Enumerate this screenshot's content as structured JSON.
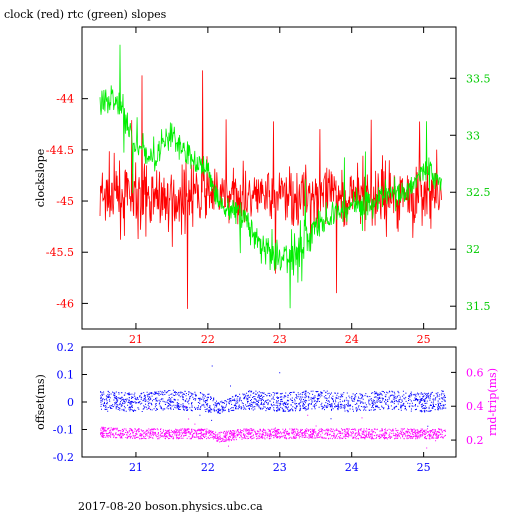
{
  "header": {
    "title": "clock (red) rtc (green) slopes"
  },
  "footer": {
    "text": "2017-08-20  boson.physics.ubc.ca"
  },
  "colors": {
    "clock": "#ff0000",
    "rtc": "#00ee00",
    "offset": "#0000ff",
    "rndtrip": "#ff00ff",
    "frame": "#000000"
  },
  "chart_data": [
    {
      "type": "line",
      "title": "clock (red) rtc (green) slopes",
      "ylabel": "clockslope",
      "x_ticks": [
        "21",
        "22",
        "23",
        "24",
        "25"
      ],
      "xlim": [
        20.25,
        25.45
      ],
      "ylim_left": [
        -46.25,
        -43.3
      ],
      "ylim_right": [
        31.3,
        33.95
      ],
      "y_ticks_left": [
        "-44",
        "-44.5",
        "-45",
        "-45.5",
        "-46"
      ],
      "y_ticks_right": [
        "33.5",
        "33",
        "32.5",
        "32",
        "31.5"
      ],
      "grid": false,
      "series": [
        {
          "name": "clock",
          "axis": "left",
          "x": [
            20.5,
            20.75,
            21.0,
            21.25,
            21.5,
            21.75,
            22.0,
            22.25,
            22.5,
            22.75,
            23.0,
            23.25,
            23.5,
            23.75,
            24.0,
            24.25,
            24.5,
            24.75,
            25.0,
            25.25
          ],
          "mean": [
            -44.97,
            -44.95,
            -44.96,
            -44.95,
            -44.96,
            -44.95,
            -44.96,
            -44.95,
            -44.96,
            -44.95,
            -44.94,
            -44.95,
            -44.95,
            -44.94,
            -44.95,
            -44.94,
            -44.95,
            -44.94,
            -44.95,
            -44.95
          ],
          "spread": [
            0.35,
            0.3,
            0.3,
            0.3,
            0.3,
            0.3,
            0.35,
            0.2,
            0.25,
            0.25,
            0.3,
            0.3,
            0.3,
            0.25,
            0.3,
            0.3,
            0.3,
            0.3,
            0.3,
            0.3
          ]
        },
        {
          "name": "rtc",
          "axis": "right",
          "x": [
            20.5,
            20.75,
            21.0,
            21.25,
            21.5,
            21.75,
            22.0,
            22.15,
            22.5,
            22.75,
            23.0,
            23.25,
            23.5,
            23.75,
            24.0,
            24.25,
            24.5,
            24.75,
            25.0,
            25.25
          ],
          "mean": [
            33.3,
            33.3,
            32.9,
            32.8,
            33.0,
            32.8,
            32.7,
            32.4,
            32.3,
            32.0,
            31.9,
            32.0,
            32.2,
            32.3,
            32.4,
            32.4,
            32.5,
            32.5,
            32.7,
            32.6
          ],
          "spread": [
            0.15,
            0.15,
            0.12,
            0.1,
            0.15,
            0.12,
            0.1,
            0.1,
            0.12,
            0.15,
            0.2,
            0.2,
            0.15,
            0.12,
            0.12,
            0.12,
            0.12,
            0.12,
            0.12,
            0.12
          ]
        }
      ]
    },
    {
      "type": "scatter",
      "ylabel_left": "offset(ms)",
      "ylabel_right": "rnd-trip(ms)",
      "x_ticks": [
        "21",
        "22",
        "23",
        "24",
        "25"
      ],
      "xlim": [
        20.25,
        25.45
      ],
      "ylim_left": [
        -0.2,
        0.2
      ],
      "ylim_right": [
        0.1,
        0.75
      ],
      "y_ticks_left": [
        "0.2",
        "0.1",
        "0",
        "-0.1",
        "-0.2"
      ],
      "y_ticks_right": [
        "0.6",
        "0.4",
        "0.2"
      ],
      "grid": false,
      "series": [
        {
          "name": "offset",
          "axis": "left",
          "x": [
            20.5,
            21.0,
            21.5,
            22.0,
            22.15,
            22.5,
            23.0,
            23.5,
            24.0,
            24.5,
            25.0,
            25.3
          ],
          "mean": [
            0.01,
            0.0,
            0.01,
            0.0,
            -0.02,
            0.01,
            0.0,
            0.01,
            0.0,
            0.01,
            0.0,
            0.01
          ],
          "spread": [
            0.035,
            0.035,
            0.035,
            0.035,
            0.02,
            0.035,
            0.035,
            0.035,
            0.035,
            0.035,
            0.035,
            0.035
          ]
        },
        {
          "name": "rnd-trip",
          "axis": "right",
          "x": [
            20.5,
            21.0,
            21.5,
            22.0,
            22.15,
            22.5,
            23.0,
            23.5,
            24.0,
            24.5,
            25.0,
            25.3
          ],
          "mean": [
            0.25,
            0.24,
            0.24,
            0.24,
            0.22,
            0.24,
            0.24,
            0.24,
            0.24,
            0.24,
            0.24,
            0.24
          ],
          "spread": [
            0.03,
            0.03,
            0.03,
            0.03,
            0.03,
            0.03,
            0.03,
            0.03,
            0.03,
            0.03,
            0.03,
            0.03
          ]
        }
      ]
    }
  ]
}
